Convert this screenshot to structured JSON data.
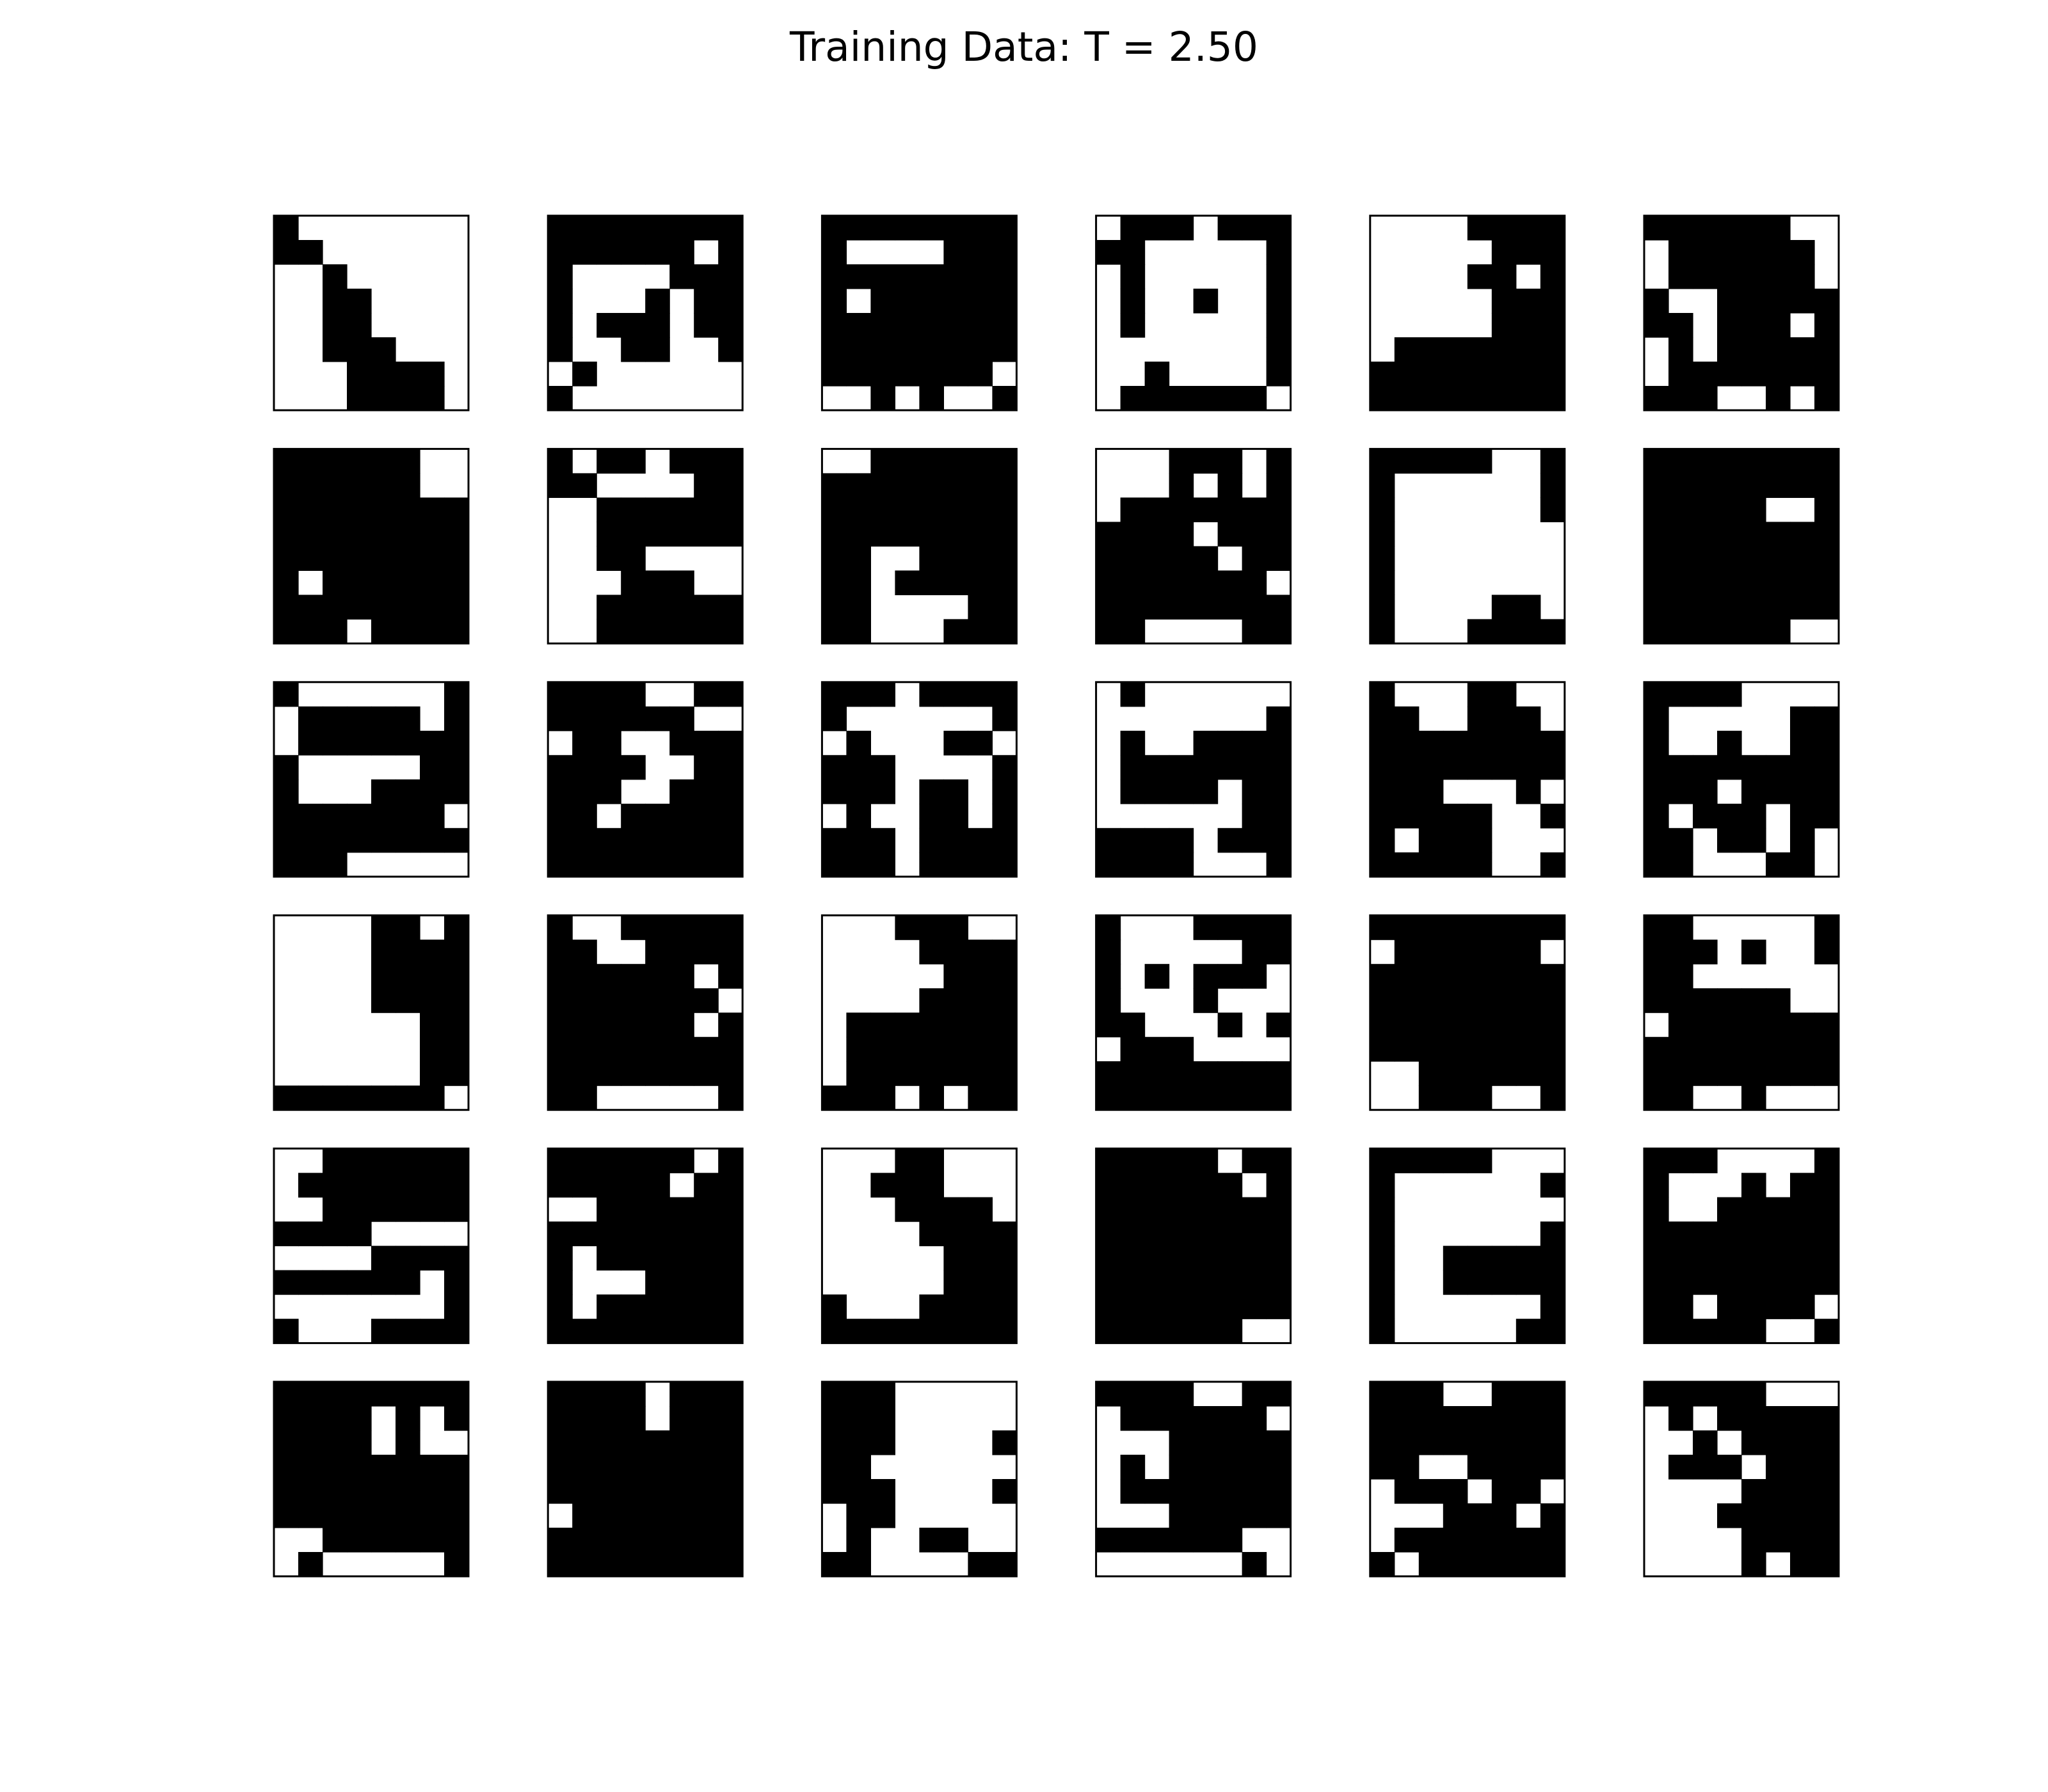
{
  "figure": {
    "title": "Training Data: T = 2.50"
  },
  "colors": {
    "spin_up": "#ffffff",
    "spin_down": "#000000",
    "frame": "#000000",
    "background": "#ffffff"
  },
  "chart_data": {
    "type": "heatmap",
    "title": "Training Data: T = 2.50",
    "layout": "6 rows x 6 columns of lattice snapshots",
    "lattice_size": 8,
    "value_legend": {
      "1": "black",
      "0": "white"
    },
    "axes": "off",
    "samples": [
      [
        "10000000",
        "11000000",
        "00100000",
        "00110000",
        "00110000",
        "00111000",
        "00011110",
        "00011110"
      ],
      [
        "11111111",
        "11111101",
        "10000111",
        "10001011",
        "10111011",
        "10011001",
        "01000000",
        "10000000"
      ],
      [
        "11111111",
        "10000111",
        "11111111",
        "10111111",
        "11111111",
        "11111111",
        "11111110",
        "00101001"
      ],
      [
        "01110111",
        "11000001",
        "01000001",
        "01001001",
        "01000001",
        "00000001",
        "00100001",
        "01111110"
      ],
      [
        "00001111",
        "00000111",
        "00001101",
        "00000111",
        "00000111",
        "01111111",
        "11111111",
        "11111111"
      ],
      [
        "11111100",
        "01111110",
        "01111110",
        "10011111",
        "11011101",
        "01011111",
        "01111111",
        "11100101"
      ],
      [
        "11111100",
        "11111100",
        "11111111",
        "11111111",
        "11111111",
        "10111111",
        "11111111",
        "11101111"
      ],
      [
        "10110111",
        "11000011",
        "00111111",
        "00111111",
        "00110000",
        "00011100",
        "00111111",
        "00111111"
      ],
      [
        "00111111",
        "11111111",
        "11111111",
        "11111111",
        "11001111",
        "11011111",
        "11000011",
        "11000111"
      ],
      [
        "00011101",
        "00010101",
        "01111111",
        "11110111",
        "11111011",
        "11111110",
        "11111111",
        "11000011"
      ],
      [
        "11111001",
        "10000001",
        "10000001",
        "10000000",
        "10000000",
        "10000000",
        "10000110",
        "10001111"
      ],
      [
        "11111111",
        "11111111",
        "11111001",
        "11111111",
        "11111111",
        "11111111",
        "11111111",
        "11111100"
      ],
      [
        "10000001",
        "01111101",
        "01111111",
        "10000011",
        "10001111",
        "11111110",
        "11111111",
        "11100000"
      ],
      [
        "11110011",
        "11111100",
        "01100111",
        "11110011",
        "11100111",
        "11011111",
        "11111111",
        "11111111"
      ],
      [
        "11101111",
        "10000001",
        "01000110",
        "11100001",
        "11101101",
        "01001101",
        "11101111",
        "11101111"
      ],
      [
        "01000000",
        "00000001",
        "01001111",
        "01111111",
        "01111011",
        "00000011",
        "11110111",
        "11110001"
      ],
      [
        "10001100",
        "11001110",
        "11111111",
        "11111111",
        "11100010",
        "11111001",
        "10111000",
        "11111001"
      ],
      [
        "11110000",
        "10000011",
        "10010011",
        "11111111",
        "11101111",
        "10111011",
        "11011010",
        "11000110"
      ],
      [
        "00001101",
        "00001111",
        "00001111",
        "00001111",
        "00000011",
        "00000011",
        "00000011",
        "11111110"
      ],
      [
        "10011111",
        "11001111",
        "11111101",
        "11111110",
        "11111101",
        "11111111",
        "11111111",
        "11000001"
      ],
      [
        "00011100",
        "00001111",
        "00000111",
        "00001111",
        "01111111",
        "01111111",
        "01111111",
        "11101011"
      ],
      [
        "10001111",
        "10000011",
        "10101110",
        "10001000",
        "11000101",
        "01110000",
        "11111111",
        "11111111"
      ],
      [
        "11111111",
        "01111110",
        "11111111",
        "11111111",
        "11111111",
        "11111111",
        "00111111",
        "00111001"
      ],
      [
        "11000001",
        "11101001",
        "11000000",
        "11111100",
        "01111111",
        "11111111",
        "11111111",
        "11001000"
      ],
      [
        "00111111",
        "01111111",
        "00111111",
        "11110000",
        "00001111",
        "11111101",
        "00000001",
        "10001111"
      ],
      [
        "11111101",
        "11111011",
        "00111111",
        "11111111",
        "10111111",
        "10001111",
        "10111111",
        "11111111"
      ],
      [
        "00011000",
        "00111000",
        "00011110",
        "00001111",
        "00000111",
        "00000111",
        "10001111",
        "11111111"
      ],
      [
        "11111011",
        "11111101",
        "11111111",
        "11111111",
        "11111111",
        "11111111",
        "11111111",
        "11111100"
      ],
      [
        "11111000",
        "10000001",
        "10000000",
        "10000001",
        "10011111",
        "10011111",
        "10000001",
        "10000011"
      ],
      [
        "11100001",
        "10001011",
        "10011111",
        "11111111",
        "11111111",
        "11111111",
        "11011110",
        "11111001"
      ],
      [
        "11111111",
        "11110101",
        "11110100",
        "11111111",
        "11111111",
        "11111111",
        "00111111",
        "01000001"
      ],
      [
        "11110111",
        "11110111",
        "11111111",
        "11111111",
        "11111111",
        "01111111",
        "11111111",
        "11111111"
      ],
      [
        "11100000",
        "11100000",
        "11100001",
        "11000000",
        "11100001",
        "01100000",
        "01001100",
        "11000011"
      ],
      [
        "11110011",
        "01111110",
        "00011111",
        "01011111",
        "01111111",
        "00011111",
        "11111100",
        "00000010"
      ],
      [
        "11100111",
        "11111111",
        "11111111",
        "11001111",
        "01110110",
        "00011101",
        "01111111",
        "10111111"
      ],
      [
        "11111000",
        "01011111",
        "00101111",
        "01110111",
        "00001111",
        "00011111",
        "00001111",
        "00001011"
      ]
    ]
  }
}
